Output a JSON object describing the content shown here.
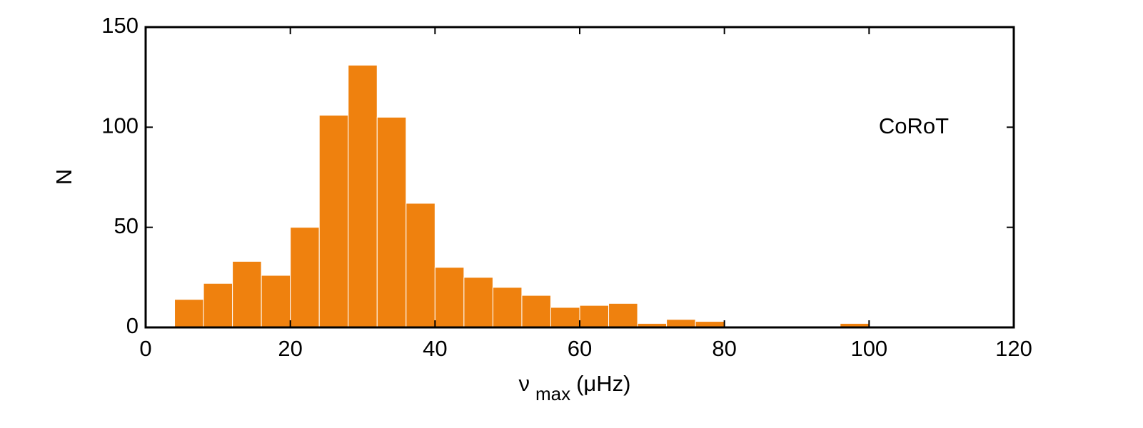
{
  "chart_data": {
    "type": "histogram",
    "bins": [
      4,
      8,
      12,
      16,
      20,
      24,
      28,
      32,
      36,
      40,
      44,
      48,
      52,
      56,
      60,
      64,
      68,
      72,
      76,
      80,
      84,
      88,
      92,
      96,
      100
    ],
    "values": [
      14,
      22,
      33,
      26,
      50,
      106,
      131,
      105,
      62,
      30,
      25,
      20,
      16,
      10,
      11,
      12,
      2,
      4,
      3,
      0,
      0,
      0,
      0,
      2
    ],
    "color": "#ef810e",
    "xlim": [
      0,
      120
    ],
    "xticks": [
      0,
      20,
      40,
      60,
      80,
      100,
      120
    ],
    "ylim": [
      0,
      150
    ],
    "yticks": [
      0,
      50,
      100,
      150
    ],
    "xlabel": [
      "ν",
      "max",
      "(μHz)"
    ],
    "ylabel": "N",
    "annotation": "CoRoT"
  }
}
